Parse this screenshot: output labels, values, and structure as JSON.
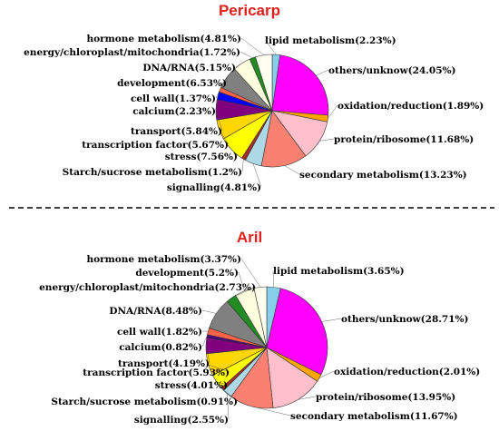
{
  "chart_data": [
    {
      "type": "pie",
      "title": "Pericarp",
      "categories": [
        "lipid metabolism",
        "others/unknow",
        "oxidation/reduction",
        "protein/ribosome",
        "secondary metabolism",
        "signalling",
        "Starch/sucrose metabolism",
        "stress",
        "transcription factor",
        "transport",
        "calcium",
        "cell wall",
        "development",
        "DNA/RNA",
        "energy/chloroplast/mitochondria",
        "hormone metabolism"
      ],
      "labels": [
        "lipid metabolism(2.23%)",
        "others/unknow(24.05%)",
        "oxidation/reduction(1.89%)",
        "protein/ribosome(11.68%)",
        "secondary metabolism(13.23%)",
        "signalling(4.81%)",
        "Starch/sucrose metabolism(1.2%)",
        "stress(7.56%)",
        "transcription factor(5.67%)",
        "transport(5.84%)",
        "calcium(2.23%)",
        "cell wall(1.37%)",
        "development(6.53%)",
        "DNA/RNA(5.15%)",
        "energy/chloroplast/mitochondria(1.72%)",
        "hormone metabolism(4.81%)"
      ],
      "values": [
        2.23,
        24.05,
        1.89,
        11.68,
        13.23,
        4.81,
        1.2,
        7.56,
        5.67,
        5.84,
        2.23,
        1.37,
        6.53,
        5.15,
        1.72,
        4.81
      ],
      "colors": [
        "#87CEEB",
        "#FF00FF",
        "#FFA500",
        "#FFC0CB",
        "#FA8072",
        "#ADD8E6",
        "#A52A2A",
        "#FFFF00",
        "#FFD700",
        "#800080",
        "#0000FF",
        "#FF6347",
        "#808080",
        "#FFFFE0",
        "#228B22",
        "#FFFFF0"
      ]
    },
    {
      "type": "pie",
      "title": "Aril",
      "categories": [
        "lipid metabolism",
        "others/unknow",
        "oxidation/reduction",
        "protein/ribosome",
        "secondary metabolism",
        "signalling",
        "Starch/sucrose metabolism",
        "stress",
        "transcription factor",
        "transport",
        "calcium",
        "cell wall",
        "DNA/RNA",
        "energy/chloroplast/mitochondria",
        "development",
        "hormone metabolism"
      ],
      "labels": [
        "lipid metabolism(3.65%)",
        "others/unknow(28.71%)",
        "oxidation/reduction(2.01%)",
        "protein/ribosome(13.95%)",
        "secondary metabolism(11.67%)",
        "signalling(2.55%)",
        "Starch/sucrose metabolism(0.91%)",
        "stress(4.01%)",
        "transcription factor(5.93%)",
        "transport(4.19%)",
        "calcium(0.82%)",
        "cell wall(1.82%)",
        "DNA/RNA(8.48%)",
        "energy/chloroplast/mitochondria(2.73%)",
        "development(5.2%)",
        "hormone metabolism(3.37%)"
      ],
      "values": [
        3.65,
        28.71,
        2.01,
        13.95,
        11.67,
        2.55,
        0.91,
        4.01,
        5.93,
        4.19,
        0.82,
        1.82,
        8.48,
        2.73,
        5.2,
        3.37
      ],
      "colors": [
        "#87CEEB",
        "#FF00FF",
        "#FFA500",
        "#FFC0CB",
        "#FA8072",
        "#ADD8E6",
        "#A52A2A",
        "#FFFF00",
        "#FFD700",
        "#800080",
        "#4B0082",
        "#FF6347",
        "#808080",
        "#228B22",
        "#FFFFE0",
        "#FFFFF0"
      ]
    }
  ]
}
